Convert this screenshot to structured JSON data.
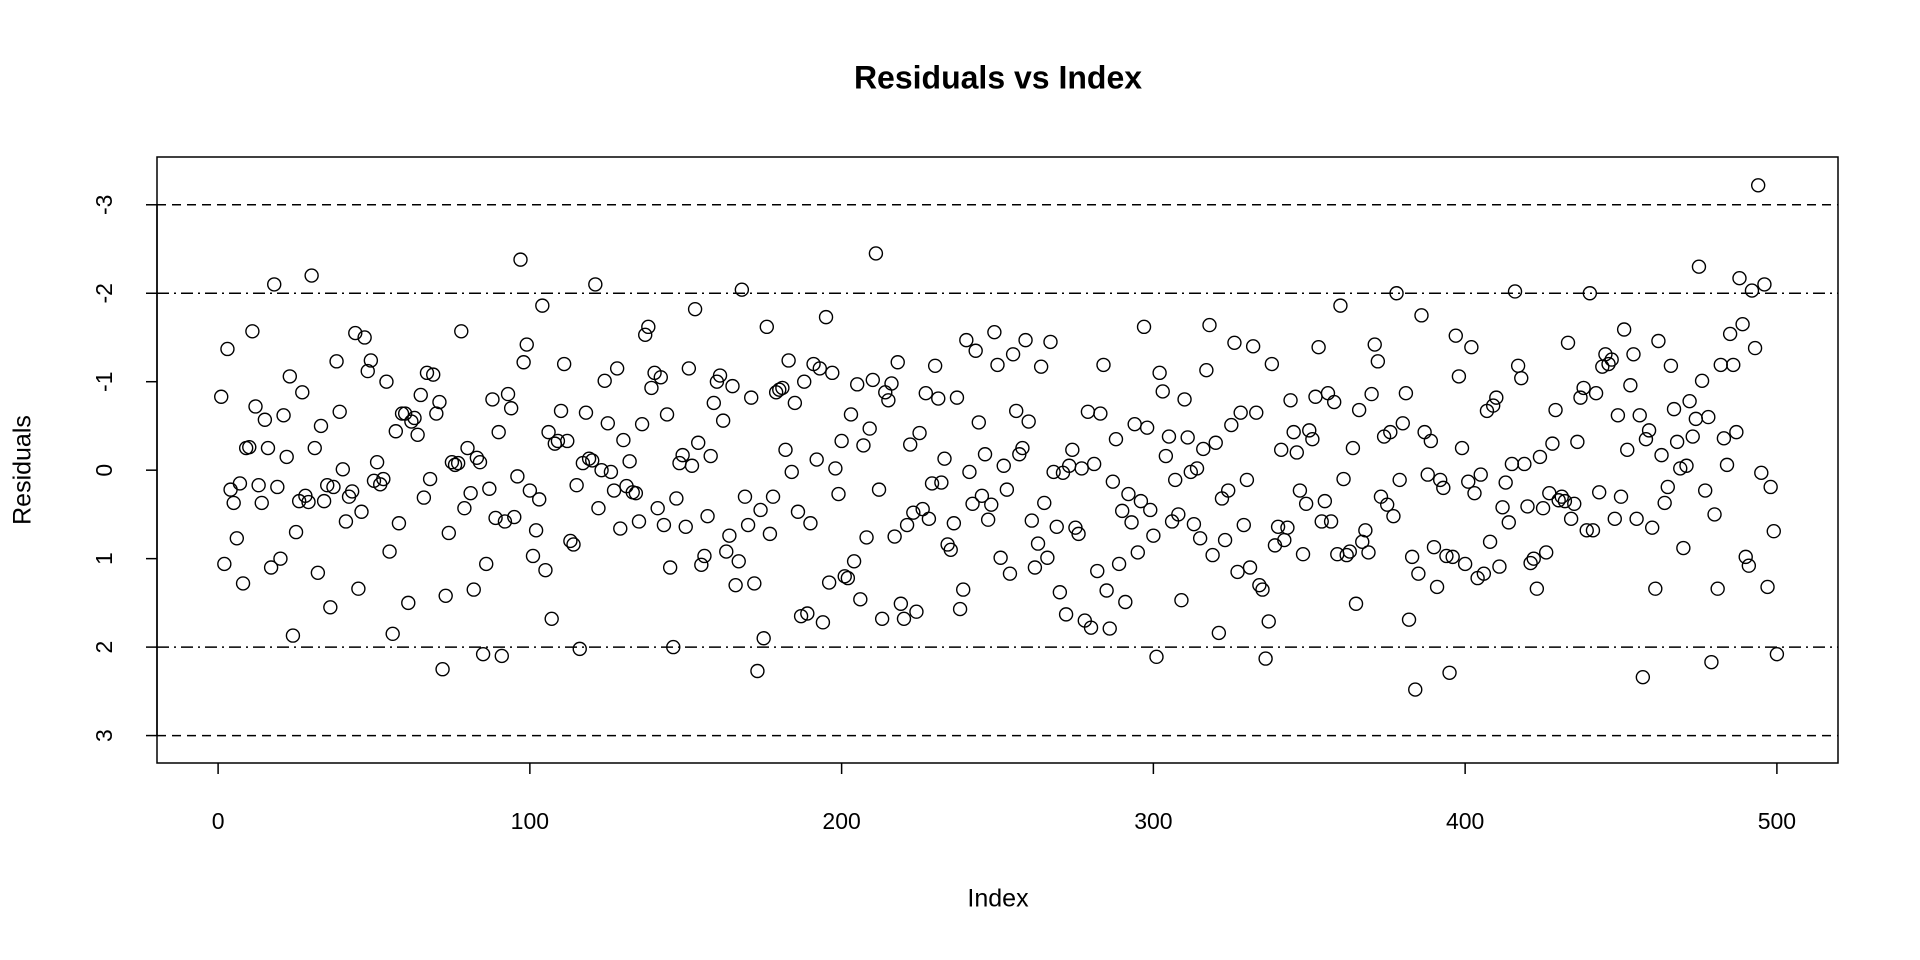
{
  "chart_data": {
    "type": "scatter",
    "title": "Residuals vs Index",
    "xlabel": "Index",
    "ylabel": "Residuals",
    "xlim": [
      -19.6,
      519.6
    ],
    "ylim": [
      3.31,
      -3.54
    ],
    "xticks": [
      0,
      100,
      200,
      300,
      400,
      500
    ],
    "yticks": [
      -3,
      -2,
      -1,
      0,
      1,
      2,
      3
    ],
    "hlines": [
      {
        "value": -3,
        "style": "dashed"
      },
      {
        "value": -2,
        "style": "dotdash"
      },
      {
        "value": 2,
        "style": "dotdash"
      },
      {
        "value": 3,
        "style": "dashed"
      }
    ],
    "color": "#000000",
    "values": [
      -0.83,
      1.06,
      -1.37,
      0.22,
      0.37,
      0.77,
      0.15,
      1.28,
      -0.25,
      -0.26,
      -1.57,
      -0.72,
      0.17,
      0.37,
      -0.57,
      -0.25,
      1.1,
      -2.1,
      0.19,
      1.0,
      -0.62,
      -0.15,
      -1.06,
      1.87,
      0.7,
      0.35,
      -0.88,
      0.29,
      0.36,
      -2.2,
      -0.25,
      1.16,
      -0.5,
      0.35,
      0.17,
      1.55,
      0.19,
      -1.23,
      -0.66,
      -0.01,
      0.58,
      0.3,
      0.24,
      -1.55,
      1.34,
      0.47,
      -1.5,
      -1.12,
      -1.24,
      0.12,
      -0.09,
      0.16,
      0.1,
      -1.0,
      0.92,
      1.85,
      -0.44,
      0.6,
      -0.64,
      -0.64,
      1.5,
      -0.55,
      -0.59,
      -0.4,
      -0.85,
      0.31,
      -1.1,
      0.1,
      -1.08,
      -0.64,
      -0.77,
      2.25,
      1.42,
      0.71,
      -0.09,
      -0.06,
      -0.08,
      -1.57,
      0.43,
      -0.25,
      0.26,
      1.35,
      -0.14,
      -0.09,
      2.08,
      1.06,
      0.21,
      -0.8,
      0.54,
      -0.43,
      2.1,
      0.58,
      -0.86,
      -0.7,
      0.53,
      0.07,
      -2.38,
      -1.22,
      -1.42,
      0.23,
      0.97,
      0.68,
      0.33,
      -1.86,
      1.13,
      -0.43,
      1.68,
      -0.3,
      -0.33,
      -0.67,
      -1.2,
      -0.33,
      0.8,
      0.84,
      0.17,
      2.02,
      -0.08,
      -0.65,
      -0.13,
      -0.11,
      -2.1,
      0.43,
      0.0,
      -1.01,
      -0.53,
      0.02,
      0.23,
      -1.15,
      0.66,
      -0.34,
      0.18,
      -0.1,
      0.25,
      0.26,
      0.58,
      -0.52,
      -1.53,
      -1.62,
      -0.93,
      -1.1,
      0.43,
      -1.05,
      0.62,
      -0.63,
      1.1,
      2.0,
      0.32,
      -0.08,
      -0.17,
      0.64,
      -1.15,
      -0.05,
      -1.82,
      -0.31,
      1.07,
      0.97,
      0.52,
      -0.16,
      -0.76,
      -1.0,
      -1.07,
      -0.56,
      0.92,
      0.74,
      -0.95,
      1.3,
      1.03,
      -2.04,
      0.3,
      0.62,
      -0.82,
      1.28,
      2.27,
      0.45,
      1.9,
      -1.62,
      0.72,
      0.3,
      -0.88,
      -0.91,
      -0.93,
      -0.23,
      -1.24,
      0.02,
      -0.76,
      0.47,
      1.65,
      -1.0,
      1.62,
      0.6,
      -1.2,
      -0.12,
      -1.15,
      1.72,
      -1.73,
      1.27,
      -1.1,
      -0.02,
      0.27,
      -0.33,
      1.2,
      1.22,
      -0.63,
      1.03,
      -0.97,
      1.46,
      -0.28,
      0.76,
      -0.47,
      -1.02,
      -2.45,
      0.22,
      1.68,
      -0.88,
      -0.79,
      -0.98,
      0.75,
      -1.22,
      1.51,
      1.68,
      0.62,
      -0.29,
      0.48,
      1.6,
      -0.42,
      0.44,
      -0.87,
      0.55,
      0.15,
      -1.18,
      -0.81,
      0.14,
      -0.13,
      0.84,
      0.9,
      0.6,
      -0.82,
      1.57,
      1.35,
      -1.47,
      0.02,
      0.38,
      -1.35,
      -0.54,
      0.29,
      -0.18,
      0.56,
      0.39,
      -1.56,
      -1.19,
      0.99,
      -0.05,
      0.22,
      1.17,
      -1.31,
      -0.67,
      -0.18,
      -0.25,
      -1.47,
      -0.55,
      0.57,
      1.1,
      0.83,
      -1.17,
      0.37,
      0.99,
      -1.45,
      0.02,
      0.64,
      1.38,
      0.03,
      1.63,
      -0.05,
      -0.23,
      0.65,
      0.72,
      -0.02,
      1.7,
      -0.66,
      1.78,
      -0.07,
      1.14,
      -0.64,
      -1.19,
      1.36,
      1.79,
      0.13,
      -0.35,
      1.06,
      0.46,
      1.49,
      0.27,
      0.59,
      -0.52,
      0.93,
      0.35,
      -1.62,
      -0.48,
      0.45,
      0.74,
      2.11,
      -1.1,
      -0.89,
      -0.16,
      -0.38,
      0.58,
      0.11,
      0.5,
      1.47,
      -0.8,
      -0.37,
      0.02,
      0.61,
      -0.02,
      0.77,
      -0.24,
      -1.13,
      -1.64,
      0.96,
      -0.31,
      1.84,
      0.32,
      0.79,
      0.23,
      -0.51,
      -1.44,
      1.15,
      -0.65,
      0.62,
      0.11,
      1.1,
      -1.4,
      -0.65,
      1.3,
      1.35,
      2.13,
      1.71,
      -1.2,
      0.85,
      0.64,
      -0.23,
      0.79,
      0.65,
      -0.79,
      -0.43,
      -0.2,
      0.23,
      0.95,
      0.38,
      -0.45,
      -0.35,
      -0.83,
      -1.39,
      0.58,
      0.35,
      -0.87,
      0.58,
      -0.77,
      0.95,
      -1.86,
      0.1,
      0.96,
      0.92,
      -0.25,
      1.51,
      -0.68,
      0.81,
      0.68,
      0.93,
      -0.86,
      -1.42,
      -1.23,
      0.3,
      -0.38,
      0.39,
      -0.43,
      0.52,
      -2.0,
      0.11,
      -0.53,
      -0.87,
      1.69,
      0.98,
      2.48,
      1.17,
      -1.75,
      -0.43,
      0.05,
      -0.33,
      0.87,
      1.32,
      0.11,
      0.2,
      0.97,
      2.29,
      0.98,
      -1.52,
      -1.06,
      -0.25,
      1.06,
      0.13,
      -1.39,
      0.26,
      1.22,
      0.05,
      1.17,
      -0.67,
      0.81,
      -0.73,
      -0.82,
      1.09,
      0.42,
      0.14,
      0.59,
      -0.07,
      -2.02,
      -1.18,
      -1.04,
      -0.07,
      0.41,
      1.05,
      1.0,
      1.34,
      -0.15,
      0.43,
      0.93,
      0.26,
      -0.3,
      -0.68,
      0.34,
      0.3,
      0.35,
      -1.44,
      0.55,
      0.38,
      -0.32,
      -0.82,
      -0.93,
      0.68,
      -2.0,
      0.68,
      -0.87,
      0.25,
      -1.17,
      -1.31,
      -1.2,
      -1.25,
      0.55,
      -0.62,
      0.3,
      -1.59,
      -0.23,
      -0.96,
      -1.31,
      0.55,
      -0.62,
      2.34,
      -0.35,
      -0.45,
      0.65,
      1.34,
      -1.46,
      -0.17,
      0.37,
      0.19,
      -1.18,
      -0.69,
      -0.32,
      -0.02,
      0.88,
      -0.05,
      -0.78,
      -0.38,
      -0.58,
      -2.3,
      -1.01,
      0.23,
      -0.6,
      2.17,
      0.5,
      1.34,
      -1.19,
      -0.36,
      -0.06,
      -1.54,
      -1.19,
      -0.43,
      -2.17,
      -1.65,
      0.98,
      1.08,
      -2.03,
      -1.38,
      -3.22,
      0.03,
      -2.1,
      1.32,
      0.19,
      0.69,
      2.08
    ]
  }
}
